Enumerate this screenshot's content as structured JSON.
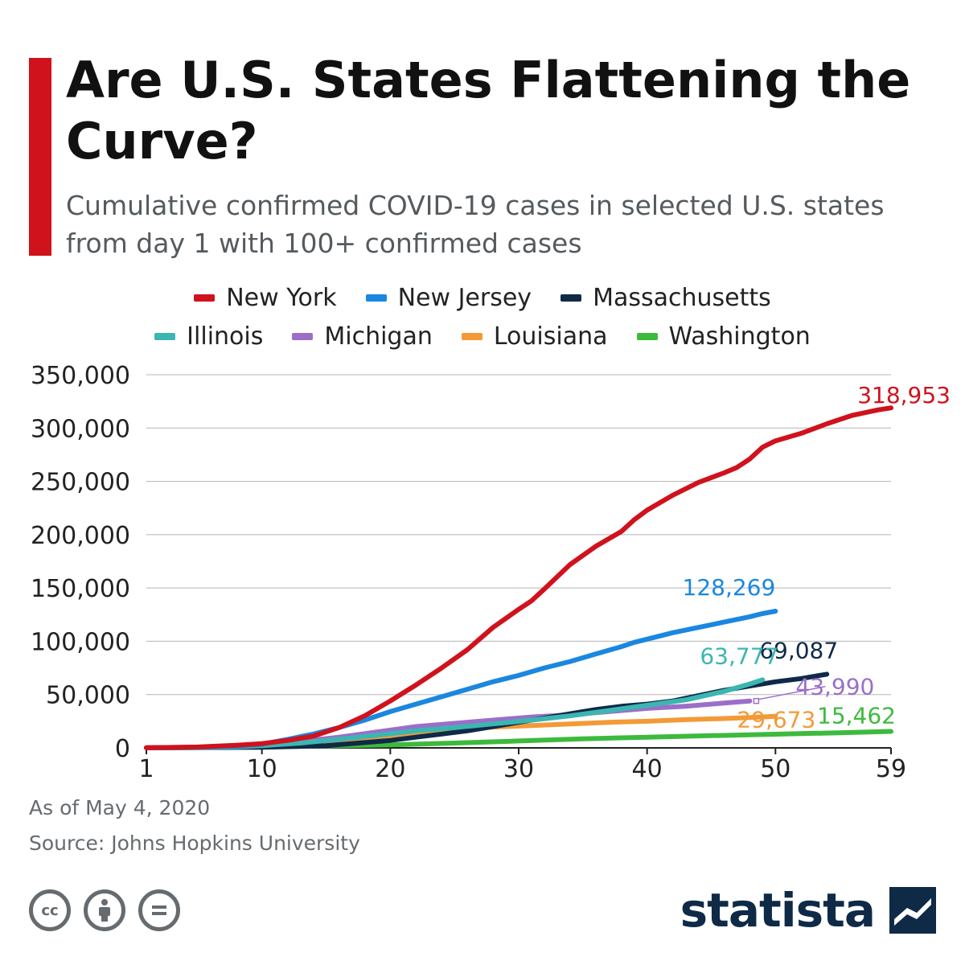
{
  "header": {
    "title": "Are U.S. States Flattening the Curve?",
    "subtitle": "Cumulative confirmed COVID-19 cases in selected U.S. states from day 1 with 100+ confirmed cases"
  },
  "footer": {
    "date_note": "As of May 4, 2020",
    "source": "Source: Johns Hopkins University",
    "brand": "statista",
    "license_icons": [
      "cc-icon",
      "attribution-icon",
      "no-derivatives-icon"
    ]
  },
  "colors": {
    "accent": "#d0121d",
    "grid": "#b5b5b5",
    "axis": "#222222",
    "brand": "#0f2a47"
  },
  "chart_data": {
    "type": "line",
    "title": "Are U.S. States Flattening the Curve?",
    "xlabel": "",
    "ylabel": "",
    "xlim": [
      1,
      59
    ],
    "ylim": [
      0,
      350000
    ],
    "x_ticks": [
      1,
      10,
      20,
      30,
      40,
      50,
      59
    ],
    "y_ticks": [
      0,
      50000,
      100000,
      150000,
      200000,
      250000,
      300000,
      350000
    ],
    "y_tick_labels": [
      "0",
      "50,000",
      "100,000",
      "150,000",
      "200,000",
      "250,000",
      "300,000",
      "350,000"
    ],
    "grid": true,
    "legend_position": "top-center",
    "series": [
      {
        "name": "New York",
        "color": "#d0121d",
        "end_label": "318,953",
        "points": [
          [
            1,
            100
          ],
          [
            5,
            800
          ],
          [
            8,
            2500
          ],
          [
            10,
            4000
          ],
          [
            12,
            7000
          ],
          [
            14,
            11000
          ],
          [
            16,
            19000
          ],
          [
            18,
            30000
          ],
          [
            20,
            44000
          ],
          [
            22,
            59000
          ],
          [
            24,
            75000
          ],
          [
            26,
            92000
          ],
          [
            28,
            113000
          ],
          [
            30,
            130000
          ],
          [
            31,
            138000
          ],
          [
            32,
            149000
          ],
          [
            34,
            172000
          ],
          [
            36,
            189000
          ],
          [
            38,
            203000
          ],
          [
            39,
            214000
          ],
          [
            40,
            223000
          ],
          [
            42,
            237000
          ],
          [
            44,
            249000
          ],
          [
            46,
            258000
          ],
          [
            47,
            263000
          ],
          [
            48,
            271000
          ],
          [
            49,
            282000
          ],
          [
            50,
            288000
          ],
          [
            52,
            295000
          ],
          [
            54,
            304000
          ],
          [
            56,
            312000
          ],
          [
            58,
            317000
          ],
          [
            59,
            318953
          ]
        ]
      },
      {
        "name": "New Jersey",
        "color": "#1a87e0",
        "end_label": "128,269",
        "points": [
          [
            1,
            100
          ],
          [
            5,
            500
          ],
          [
            8,
            1500
          ],
          [
            10,
            3500
          ],
          [
            12,
            8000
          ],
          [
            14,
            13000
          ],
          [
            16,
            19000
          ],
          [
            18,
            26000
          ],
          [
            20,
            34000
          ],
          [
            22,
            41000
          ],
          [
            24,
            48000
          ],
          [
            26,
            55000
          ],
          [
            28,
            62000
          ],
          [
            30,
            68000
          ],
          [
            32,
            75000
          ],
          [
            34,
            81000
          ],
          [
            36,
            88000
          ],
          [
            38,
            95000
          ],
          [
            39,
            99000
          ],
          [
            40,
            102000
          ],
          [
            42,
            108000
          ],
          [
            44,
            113000
          ],
          [
            46,
            118000
          ],
          [
            48,
            123000
          ],
          [
            49,
            126000
          ],
          [
            50,
            128269
          ]
        ]
      },
      {
        "name": "Massachusetts",
        "color": "#0f2a47",
        "end_label": "69,087",
        "points": [
          [
            1,
            100
          ],
          [
            10,
            500
          ],
          [
            15,
            2000
          ],
          [
            18,
            5000
          ],
          [
            20,
            7000
          ],
          [
            22,
            10000
          ],
          [
            24,
            13000
          ],
          [
            26,
            16000
          ],
          [
            28,
            20000
          ],
          [
            30,
            24000
          ],
          [
            32,
            28000
          ],
          [
            34,
            32000
          ],
          [
            36,
            36000
          ],
          [
            38,
            39000
          ],
          [
            40,
            41000
          ],
          [
            42,
            44000
          ],
          [
            44,
            49000
          ],
          [
            46,
            54000
          ],
          [
            48,
            58000
          ],
          [
            50,
            62000
          ],
          [
            52,
            65000
          ],
          [
            54,
            69087
          ]
        ]
      },
      {
        "name": "Illinois",
        "color": "#3bb6b1",
        "end_label": "63,777",
        "points": [
          [
            1,
            100
          ],
          [
            5,
            400
          ],
          [
            8,
            1000
          ],
          [
            10,
            2000
          ],
          [
            13,
            4500
          ],
          [
            16,
            8000
          ],
          [
            19,
            12000
          ],
          [
            22,
            16000
          ],
          [
            25,
            19000
          ],
          [
            28,
            22500
          ],
          [
            31,
            26000
          ],
          [
            34,
            30000
          ],
          [
            37,
            35000
          ],
          [
            40,
            40000
          ],
          [
            43,
            45000
          ],
          [
            46,
            53000
          ],
          [
            48,
            60000
          ],
          [
            49,
            63777
          ]
        ]
      },
      {
        "name": "Michigan",
        "color": "#9b6fc9",
        "end_label": "43,990",
        "points": [
          [
            1,
            100
          ],
          [
            5,
            500
          ],
          [
            8,
            1500
          ],
          [
            10,
            3000
          ],
          [
            13,
            6000
          ],
          [
            16,
            10000
          ],
          [
            19,
            15000
          ],
          [
            22,
            20000
          ],
          [
            25,
            23000
          ],
          [
            28,
            26000
          ],
          [
            31,
            29000
          ],
          [
            34,
            31000
          ],
          [
            37,
            34000
          ],
          [
            40,
            37000
          ],
          [
            43,
            39000
          ],
          [
            46,
            42000
          ],
          [
            48,
            43990
          ]
        ]
      },
      {
        "name": "Louisiana",
        "color": "#f39a37",
        "end_label": "29,673",
        "points": [
          [
            1,
            100
          ],
          [
            5,
            400
          ],
          [
            8,
            1000
          ],
          [
            10,
            2000
          ],
          [
            13,
            4000
          ],
          [
            16,
            7000
          ],
          [
            19,
            10500
          ],
          [
            22,
            14000
          ],
          [
            25,
            17000
          ],
          [
            28,
            19500
          ],
          [
            31,
            21000
          ],
          [
            34,
            22500
          ],
          [
            37,
            24000
          ],
          [
            40,
            25000
          ],
          [
            43,
            26500
          ],
          [
            46,
            27500
          ],
          [
            48,
            28500
          ],
          [
            50,
            29673
          ]
        ]
      },
      {
        "name": "Washington",
        "color": "#3dba3d",
        "end_label": "15,462",
        "points": [
          [
            1,
            100
          ],
          [
            5,
            300
          ],
          [
            10,
            900
          ],
          [
            15,
            1800
          ],
          [
            20,
            2800
          ],
          [
            25,
            4500
          ],
          [
            30,
            6500
          ],
          [
            35,
            8500
          ],
          [
            40,
            10000
          ],
          [
            45,
            11500
          ],
          [
            50,
            12800
          ],
          [
            55,
            14200
          ],
          [
            59,
            15462
          ]
        ]
      }
    ]
  }
}
